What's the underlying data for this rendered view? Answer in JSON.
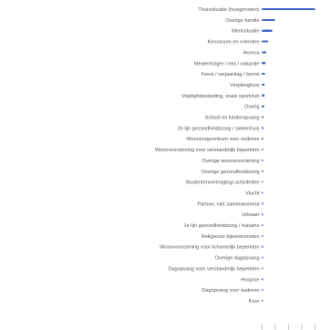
{
  "chart_data": {
    "type": "bar",
    "orientation": "horizontal",
    "title": "",
    "xlabel": "",
    "ylabel": "",
    "xlim": [
      0,
      100
    ],
    "grid": false,
    "legend": "none",
    "bar_color": "#3f5fbf",
    "categories": [
      "Thuissituatie (huisgenoten)",
      "Overige familie",
      "Werksituatie",
      "Kennissen en vrienden",
      "Horeca",
      "Medereiziger / reis / vakantie",
      "Feest / verjaardag / borrel",
      "Verpleeghuis",
      "Vrijetijdsbesteding, zoals sportclub",
      "Overig",
      "School en kinderopvang",
      "2e lijn gezondheidszorg / ziekenhuis",
      "Woonzorgcentrum voor ouderen",
      "Woonvoorziening voor verstandelijk beperkten",
      "Overige woonvoorziening",
      "Overige gezondheidszorg",
      "Studentenvereniging/-activiteiten",
      "Vlucht",
      "Partner, niet samenwonend",
      "Uitvaart",
      "1e lijn gezondheidszorg / huisarts",
      "Religieuze bijeenkomsten",
      "Woonvoorziening voor lichamelijk beperkten",
      "Overige dagopvang",
      "Dagopvang voor verstandelijk beperkten",
      "Hospice",
      "Dagopvang voor ouderen",
      "Koor"
    ],
    "values": [
      100,
      24,
      19,
      11,
      8,
      6,
      5,
      4.5,
      4,
      3.5,
      3,
      2.2,
      1.8,
      1.5,
      1.2,
      1.0,
      0.9,
      0.8,
      0.7,
      0.6,
      0.55,
      0.5,
      0.45,
      0.4,
      0.35,
      0.3,
      0.25,
      0.2
    ]
  }
}
